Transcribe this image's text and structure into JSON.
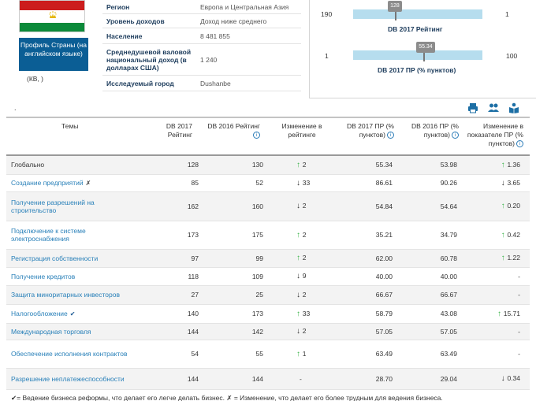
{
  "country": {
    "profile_button_label": "Профиль Страны (на английском языке)",
    "kv_label": "(КВ, )",
    "flag_colors": [
      "#cc1d1d",
      "#ffffff",
      "#0c8a3a"
    ]
  },
  "info": [
    {
      "label": "Регион",
      "value": "Европа и Центральная Азия"
    },
    {
      "label": "Уровень доходов",
      "value": "Доход ниже среднего"
    },
    {
      "label": "Население",
      "value": "8 481 855"
    },
    {
      "label": "Среднедушевой валовой национальный доход (в долларах США)",
      "value": "1 240"
    },
    {
      "label": "Исследуемый город",
      "value": "Dushanbe"
    }
  ],
  "rank_bar": {
    "min": "190",
    "max": "1",
    "value": "128",
    "value_fraction": 0.33,
    "title": "DB 2017 Рейтинг"
  },
  "dtf_bar": {
    "min": "1",
    "max": "100",
    "value": "55.34",
    "value_fraction": 0.55,
    "title": "DB 2017 ПР (% пунктов)"
  },
  "toolbar": {
    "dot": ".",
    "icons": [
      "print-icon",
      "users-icon",
      "reader-icon"
    ],
    "icon_color": "#1d6fa5"
  },
  "table": {
    "headers": {
      "topics": "Темы",
      "db2017_rank": "DB 2017 Рейтинг",
      "db2016_rank": "DB 2016 Рейтинг",
      "rank_change": "Изменение в рейтинге",
      "db2017_dtf": "DB 2017 ПР (% пунктов)",
      "db2016_dtf": "DB 2016 ПР (% пунктов)",
      "dtf_change": "Изменение в показателе ПР (% пунктов)"
    },
    "rows": [
      {
        "topic": "Глобально",
        "link": false,
        "mark": "",
        "r17": "128",
        "r16": "130",
        "rc_dir": "up",
        "rc": "2",
        "d17": "55.34",
        "d16": "53.98",
        "dc_dir": "up",
        "dc": "1.36"
      },
      {
        "topic": "Создание предприятий",
        "link": true,
        "mark": "✗",
        "r17": "85",
        "r16": "52",
        "rc_dir": "down",
        "rc": "33",
        "d17": "86.61",
        "d16": "90.26",
        "dc_dir": "down",
        "dc": "3.65"
      },
      {
        "topic": "Получение разрешений на строительство",
        "link": true,
        "mark": "",
        "r17": "162",
        "r16": "160",
        "rc_dir": "down",
        "rc": "2",
        "d17": "54.84",
        "d16": "54.64",
        "dc_dir": "up",
        "dc": "0.20"
      },
      {
        "topic": "Подключение к системе электроснабжения",
        "link": true,
        "mark": "",
        "r17": "173",
        "r16": "175",
        "rc_dir": "up",
        "rc": "2",
        "d17": "35.21",
        "d16": "34.79",
        "dc_dir": "up",
        "dc": "0.42"
      },
      {
        "topic": "Регистрация собственности",
        "link": true,
        "mark": "",
        "r17": "97",
        "r16": "99",
        "rc_dir": "up",
        "rc": "2",
        "d17": "62.00",
        "d16": "60.78",
        "dc_dir": "up",
        "dc": "1.22"
      },
      {
        "topic": "Получение кредитов",
        "link": true,
        "mark": "",
        "r17": "118",
        "r16": "109",
        "rc_dir": "down",
        "rc": "9",
        "d17": "40.00",
        "d16": "40.00",
        "dc_dir": "none",
        "dc": "-"
      },
      {
        "topic": "Защита миноритарных инвесторов",
        "link": true,
        "mark": "",
        "r17": "27",
        "r16": "25",
        "rc_dir": "down",
        "rc": "2",
        "d17": "66.67",
        "d16": "66.67",
        "dc_dir": "none",
        "dc": "-"
      },
      {
        "topic": "Налогообложение",
        "link": true,
        "mark": "✔",
        "r17": "140",
        "r16": "173",
        "rc_dir": "up",
        "rc": "33",
        "d17": "58.79",
        "d16": "43.08",
        "dc_dir": "up",
        "dc": "15.71"
      },
      {
        "topic": "Международная торговля",
        "link": true,
        "mark": "",
        "r17": "144",
        "r16": "142",
        "rc_dir": "down",
        "rc": "2",
        "d17": "57.05",
        "d16": "57.05",
        "dc_dir": "none",
        "dc": "-"
      },
      {
        "topic": "Обеспечение исполнения контрактов",
        "link": true,
        "mark": "",
        "r17": "54",
        "r16": "55",
        "rc_dir": "up",
        "rc": "1",
        "d17": "63.49",
        "d16": "63.49",
        "dc_dir": "none",
        "dc": "-"
      },
      {
        "topic": "Разрешение неплатежеспособности",
        "link": true,
        "mark": "",
        "r17": "144",
        "r16": "144",
        "rc_dir": "none",
        "rc": "-",
        "d17": "28.70",
        "d16": "29.04",
        "dc_dir": "down",
        "dc": "0.34"
      }
    ]
  },
  "footnote": "✔= Ведение бизнеса реформы, что делает его легче делать бизнес. ✗ = Изменение, что делает его более трудным для ведения бизнеса."
}
